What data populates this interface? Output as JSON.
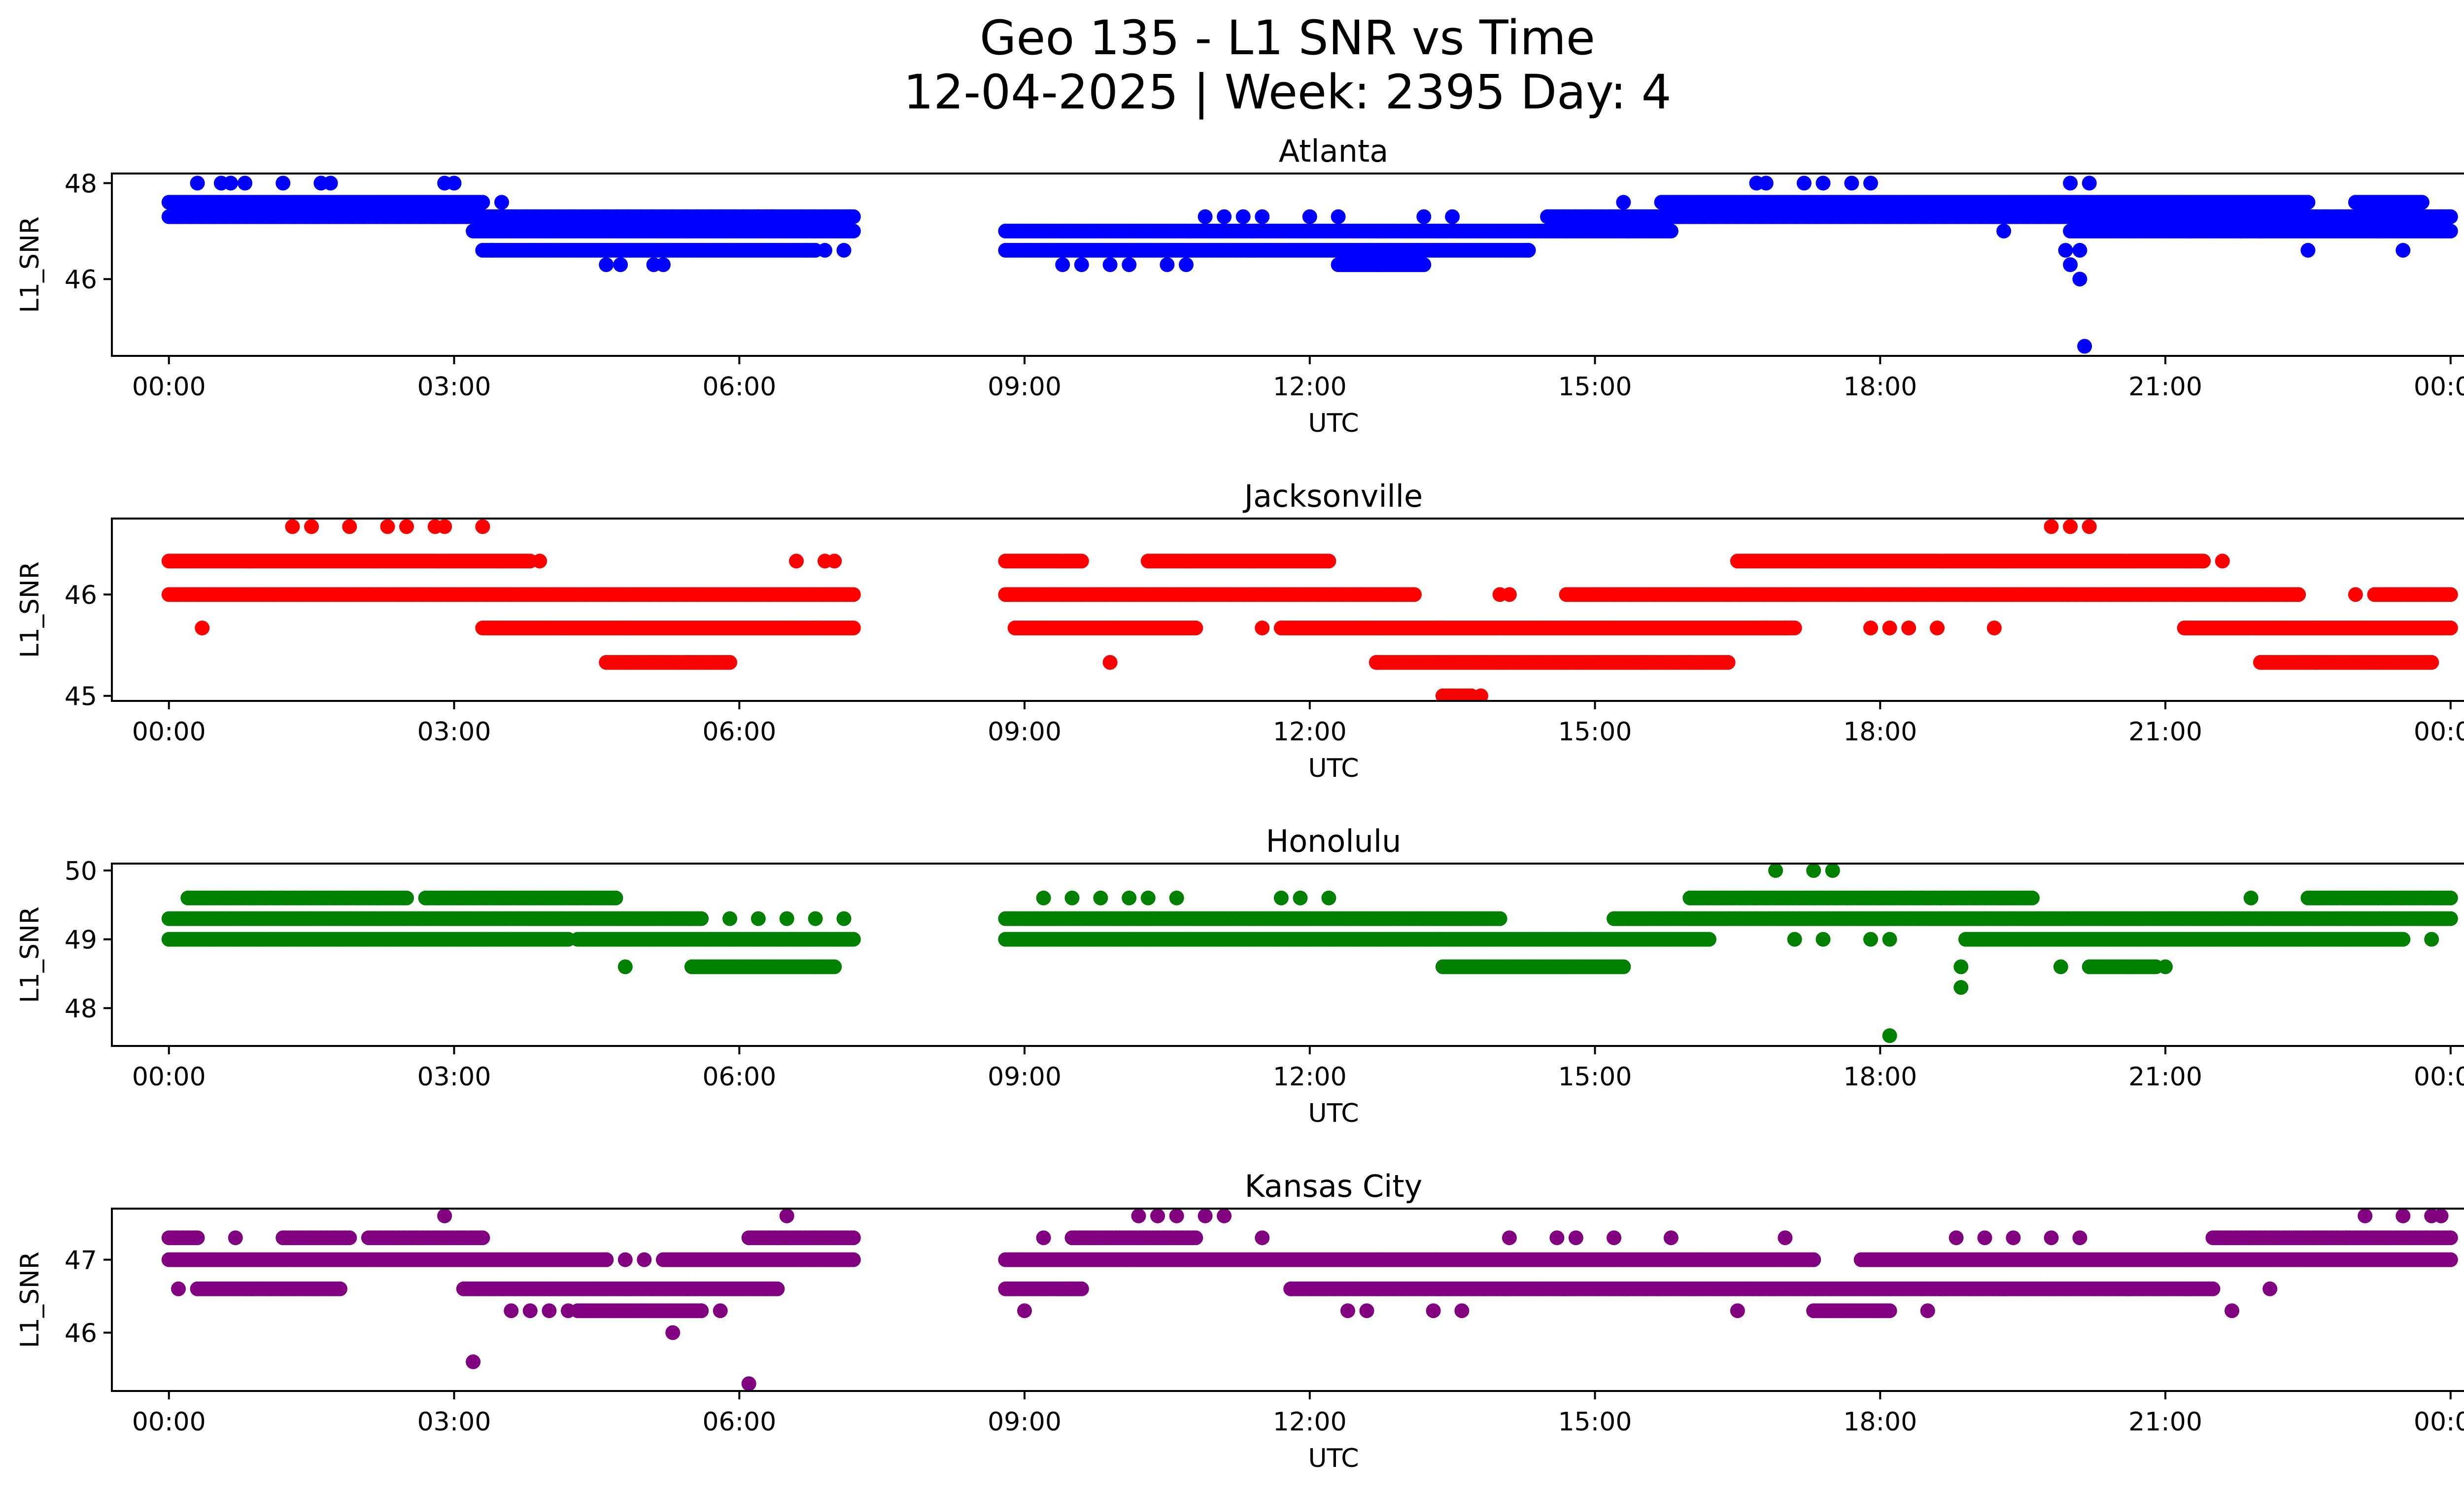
{
  "figure": {
    "title_line1": "Geo 135 - L1 SNR vs Time",
    "title_line2": "12-04-2025 | Week: 2395 Day: 4"
  },
  "chart_data": [
    {
      "type": "scatter",
      "title": "Atlanta",
      "xlabel": "UTC",
      "ylabel": "L1_SNR",
      "color": "#0000ff",
      "xlim": [
        -0.6,
        25.1
      ],
      "ylim": [
        44.4,
        48.2
      ],
      "yticks": [
        46,
        48
      ],
      "xticks": [
        "00:00",
        "03:00",
        "06:00",
        "09:00",
        "12:00",
        "15:00",
        "18:00",
        "21:00",
        "00:00"
      ],
      "bands": [
        {
          "y": 47.3,
          "ranges": [
            [
              0,
              7.2
            ],
            [
              14.5,
              24
            ]
          ]
        },
        {
          "y": 47.6,
          "ranges": [
            [
              0,
              3.3
            ],
            [
              15.7,
              22.5
            ],
            [
              23.0,
              23.7
            ]
          ]
        },
        {
          "y": 47.0,
          "ranges": [
            [
              3.2,
              7.2
            ],
            [
              8.8,
              15.8
            ],
            [
              20.0,
              24
            ]
          ]
        },
        {
          "y": 46.6,
          "ranges": [
            [
              3.3,
              6.8
            ],
            [
              8.8,
              14.3
            ]
          ]
        },
        {
          "y": 46.3,
          "ranges": [
            [
              12.3,
              13.2
            ]
          ]
        }
      ],
      "points": [
        [
          0.3,
          48.0
        ],
        [
          0.55,
          48.0
        ],
        [
          0.65,
          48.0
        ],
        [
          0.8,
          48.0
        ],
        [
          1.2,
          48.0
        ],
        [
          1.6,
          48.0
        ],
        [
          1.7,
          48.0
        ],
        [
          2.9,
          48.0
        ],
        [
          3.0,
          48.0
        ],
        [
          3.5,
          47.6
        ],
        [
          3.4,
          46.6
        ],
        [
          4.6,
          46.3
        ],
        [
          4.75,
          46.3
        ],
        [
          5.1,
          46.3
        ],
        [
          5.2,
          46.3
        ],
        [
          6.7,
          46.6
        ],
        [
          6.9,
          46.6
        ],
        [
          7.1,
          46.6
        ],
        [
          6.2,
          47.3
        ],
        [
          6.35,
          47.3
        ],
        [
          9.4,
          46.3
        ],
        [
          9.6,
          46.3
        ],
        [
          9.9,
          46.3
        ],
        [
          10.1,
          46.3
        ],
        [
          10.5,
          46.3
        ],
        [
          10.7,
          46.3
        ],
        [
          10.9,
          47.3
        ],
        [
          11.1,
          47.3
        ],
        [
          11.3,
          47.3
        ],
        [
          11.5,
          47.3
        ],
        [
          12.0,
          47.3
        ],
        [
          12.3,
          47.3
        ],
        [
          13.2,
          47.3
        ],
        [
          13.5,
          47.3
        ],
        [
          14.3,
          46.6
        ],
        [
          15.3,
          47.6
        ],
        [
          16.7,
          48.0
        ],
        [
          16.8,
          48.0
        ],
        [
          17.2,
          48.0
        ],
        [
          17.4,
          48.0
        ],
        [
          17.7,
          48.0
        ],
        [
          17.9,
          48.0
        ],
        [
          19.3,
          47.0
        ],
        [
          20.0,
          48.0
        ],
        [
          20.2,
          48.0
        ],
        [
          19.95,
          46.6
        ],
        [
          20.0,
          46.3
        ],
        [
          20.1,
          46.0
        ],
        [
          20.15,
          44.6
        ],
        [
          20.1,
          46.6
        ],
        [
          21.1,
          47.6
        ],
        [
          21.5,
          47.6
        ],
        [
          22.5,
          46.6
        ],
        [
          23.2,
          47.6
        ],
        [
          23.5,
          47.6
        ],
        [
          23.5,
          47.3
        ],
        [
          23.9,
          47.3
        ],
        [
          23.5,
          46.6
        ],
        [
          21.8,
          47.0
        ],
        [
          22.0,
          47.0
        ]
      ]
    },
    {
      "type": "scatter",
      "title": "Jacksonville",
      "xlabel": "UTC",
      "ylabel": "L1_SNR",
      "color": "#ff0000",
      "xlim": [
        -0.6,
        25.1
      ],
      "ylim": [
        44.95,
        46.75
      ],
      "yticks": [
        45,
        46
      ],
      "xticks": [
        "00:00",
        "03:00",
        "06:00",
        "09:00",
        "12:00",
        "15:00",
        "18:00",
        "21:00",
        "00:00"
      ],
      "bands": [
        {
          "y": 46.33,
          "ranges": [
            [
              0,
              3.8
            ],
            [
              8.8,
              9.6
            ],
            [
              10.3,
              12.2
            ],
            [
              16.5,
              21.4
            ]
          ]
        },
        {
          "y": 46.0,
          "ranges": [
            [
              0,
              7.2
            ],
            [
              8.8,
              13.1
            ],
            [
              14.7,
              22.4
            ],
            [
              23.2,
              24
            ]
          ]
        },
        {
          "y": 45.67,
          "ranges": [
            [
              3.3,
              7.2
            ],
            [
              8.9,
              10.8
            ],
            [
              11.7,
              17.1
            ],
            [
              21.2,
              24
            ]
          ]
        },
        {
          "y": 45.33,
          "ranges": [
            [
              4.6,
              5.9
            ],
            [
              12.7,
              16.4
            ],
            [
              22.0,
              23.8
            ]
          ]
        },
        {
          "y": 45.0,
          "ranges": [
            [
              13.4,
              13.7
            ]
          ]
        }
      ],
      "points": [
        [
          1.3,
          46.67
        ],
        [
          1.5,
          46.67
        ],
        [
          1.9,
          46.67
        ],
        [
          2.3,
          46.67
        ],
        [
          2.5,
          46.67
        ],
        [
          2.8,
          46.67
        ],
        [
          2.9,
          46.67
        ],
        [
          3.3,
          46.67
        ],
        [
          0.35,
          45.67
        ],
        [
          3.9,
          46.33
        ],
        [
          6.6,
          46.33
        ],
        [
          6.9,
          46.33
        ],
        [
          7.0,
          46.33
        ],
        [
          9.9,
          45.33
        ],
        [
          11.5,
          45.67
        ],
        [
          14.0,
          46.0
        ],
        [
          14.1,
          46.0
        ],
        [
          16.0,
          45.33
        ],
        [
          15.5,
          45.33
        ],
        [
          16.8,
          45.67
        ],
        [
          17.0,
          45.67
        ],
        [
          17.9,
          45.67
        ],
        [
          18.1,
          45.67
        ],
        [
          18.3,
          45.67
        ],
        [
          18.6,
          45.67
        ],
        [
          19.2,
          45.67
        ],
        [
          19.8,
          46.67
        ],
        [
          20.0,
          46.67
        ],
        [
          20.2,
          46.67
        ],
        [
          21.6,
          46.33
        ],
        [
          22.4,
          46.0
        ],
        [
          23.0,
          46.0
        ],
        [
          13.5,
          45.0
        ],
        [
          13.8,
          45.0
        ]
      ]
    },
    {
      "type": "scatter",
      "title": "Honolulu",
      "xlabel": "UTC",
      "ylabel": "L1_SNR",
      "color": "#008000",
      "xlim": [
        -0.6,
        25.1
      ],
      "ylim": [
        47.45,
        50.1
      ],
      "yticks": [
        48,
        49,
        50
      ],
      "xticks": [
        "00:00",
        "03:00",
        "06:00",
        "09:00",
        "12:00",
        "15:00",
        "18:00",
        "21:00",
        "00:00"
      ],
      "bands": [
        {
          "y": 49.6,
          "ranges": [
            [
              0.2,
              2.5
            ],
            [
              2.7,
              4.7
            ],
            [
              16.0,
              19.6
            ],
            [
              22.5,
              24
            ]
          ]
        },
        {
          "y": 49.3,
          "ranges": [
            [
              0,
              5.6
            ],
            [
              8.8,
              14.0
            ],
            [
              15.2,
              24
            ]
          ]
        },
        {
          "y": 49.0,
          "ranges": [
            [
              0,
              4.2
            ],
            [
              4.3,
              7.2
            ],
            [
              8.8,
              16.2
            ],
            [
              18.9,
              23.5
            ]
          ]
        },
        {
          "y": 48.6,
          "ranges": [
            [
              5.5,
              7.0
            ],
            [
              13.4,
              15.3
            ],
            [
              20.2,
              20.9
            ]
          ]
        }
      ],
      "points": [
        [
          4.8,
          48.6
        ],
        [
          5.9,
          49.3
        ],
        [
          6.2,
          49.3
        ],
        [
          6.5,
          49.3
        ],
        [
          6.8,
          49.3
        ],
        [
          7.1,
          49.3
        ],
        [
          3.3,
          49.0
        ],
        [
          3.6,
          49.0
        ],
        [
          9.2,
          49.6
        ],
        [
          9.5,
          49.6
        ],
        [
          9.8,
          49.6
        ],
        [
          10.1,
          49.6
        ],
        [
          10.3,
          49.6
        ],
        [
          10.6,
          49.6
        ],
        [
          11.7,
          49.6
        ],
        [
          11.9,
          49.6
        ],
        [
          12.2,
          49.6
        ],
        [
          16.9,
          50.0
        ],
        [
          17.3,
          50.0
        ],
        [
          17.5,
          50.0
        ],
        [
          17.1,
          49.0
        ],
        [
          17.4,
          49.0
        ],
        [
          17.9,
          49.0
        ],
        [
          18.1,
          49.0
        ],
        [
          18.85,
          48.6
        ],
        [
          18.85,
          48.3
        ],
        [
          18.1,
          47.6
        ],
        [
          19.9,
          48.6
        ],
        [
          21.0,
          48.6
        ],
        [
          21.9,
          49.6
        ],
        [
          23.8,
          49.0
        ]
      ]
    },
    {
      "type": "scatter",
      "title": "Kansas City",
      "xlabel": "UTC",
      "ylabel": "L1_SNR",
      "color": "#800080",
      "xlim": [
        -0.6,
        25.1
      ],
      "ylim": [
        45.2,
        47.7
      ],
      "yticks": [
        46,
        47
      ],
      "xticks": [
        "00:00",
        "03:00",
        "06:00",
        "09:00",
        "12:00",
        "15:00",
        "18:00",
        "21:00",
        "00:00"
      ],
      "bands": [
        {
          "y": 47.3,
          "ranges": [
            [
              0,
              0.3
            ],
            [
              1.2,
              1.9
            ],
            [
              2.1,
              3.3
            ],
            [
              6.1,
              7.2
            ],
            [
              9.5,
              10.8
            ],
            [
              21.5,
              24
            ]
          ]
        },
        {
          "y": 47.0,
          "ranges": [
            [
              0,
              4.6
            ],
            [
              5.2,
              7.2
            ],
            [
              8.8,
              17.3
            ],
            [
              17.8,
              24
            ]
          ]
        },
        {
          "y": 46.6,
          "ranges": [
            [
              0.3,
              1.8
            ],
            [
              3.1,
              6.4
            ],
            [
              8.8,
              9.6
            ],
            [
              11.8,
              21.5
            ]
          ]
        },
        {
          "y": 46.3,
          "ranges": [
            [
              4.3,
              5.6
            ],
            [
              17.3,
              18.1
            ]
          ]
        }
      ],
      "points": [
        [
          0.1,
          46.6
        ],
        [
          0.7,
          47.3
        ],
        [
          2.9,
          47.6
        ],
        [
          3.2,
          45.6
        ],
        [
          3.6,
          46.3
        ],
        [
          3.8,
          46.3
        ],
        [
          4.0,
          46.3
        ],
        [
          4.2,
          46.3
        ],
        [
          4.6,
          47.0
        ],
        [
          4.8,
          47.0
        ],
        [
          5.0,
          47.0
        ],
        [
          5.3,
          46.0
        ],
        [
          5.6,
          46.3
        ],
        [
          5.8,
          46.3
        ],
        [
          6.1,
          45.3
        ],
        [
          6.5,
          47.6
        ],
        [
          9.0,
          46.3
        ],
        [
          9.2,
          47.3
        ],
        [
          9.5,
          46.6
        ],
        [
          10.2,
          47.6
        ],
        [
          10.4,
          47.6
        ],
        [
          10.6,
          47.6
        ],
        [
          10.9,
          47.6
        ],
        [
          11.1,
          47.6
        ],
        [
          11.5,
          47.3
        ],
        [
          12.4,
          46.3
        ],
        [
          12.6,
          46.3
        ],
        [
          13.3,
          46.3
        ],
        [
          13.6,
          46.3
        ],
        [
          14.1,
          47.3
        ],
        [
          14.6,
          47.3
        ],
        [
          14.8,
          47.3
        ],
        [
          15.2,
          47.3
        ],
        [
          15.8,
          47.3
        ],
        [
          16.5,
          46.3
        ],
        [
          17.0,
          47.3
        ],
        [
          18.5,
          46.3
        ],
        [
          18.8,
          47.3
        ],
        [
          19.1,
          47.3
        ],
        [
          19.4,
          47.3
        ],
        [
          19.8,
          47.3
        ],
        [
          20.1,
          47.3
        ],
        [
          21.7,
          46.3
        ],
        [
          22.1,
          46.6
        ],
        [
          22.9,
          47.3
        ],
        [
          23.1,
          47.6
        ],
        [
          23.5,
          47.6
        ],
        [
          23.8,
          47.6
        ],
        [
          23.9,
          47.6
        ]
      ]
    }
  ]
}
